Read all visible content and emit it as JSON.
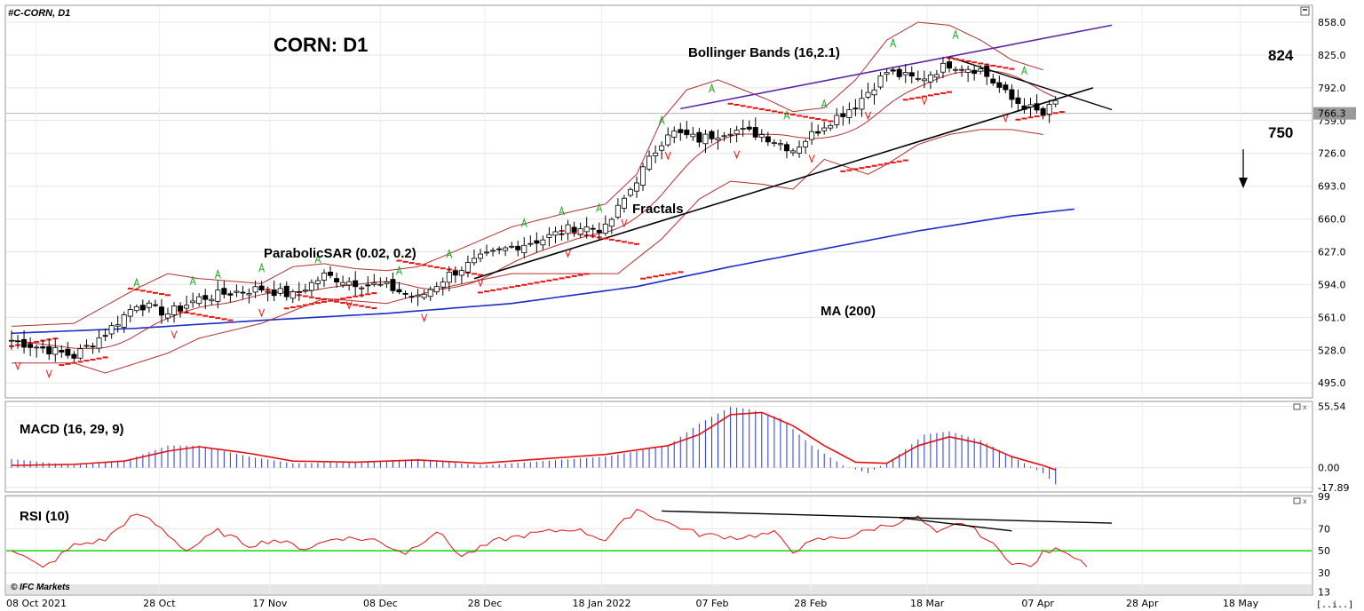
{
  "header": {
    "symbol_label": "#C-CORN, D1"
  },
  "watermark": "© IFC Markets",
  "corner_button": "[..i..]",
  "chart_data": [
    {
      "type": "candlestick",
      "panel": "price",
      "title": "CORN: D1",
      "ylim": [
        480,
        875
      ],
      "y_ticks": [
        858.0,
        825.0,
        792.0,
        759.0,
        726.0,
        693.0,
        660.0,
        627.0,
        594.0,
        561.0,
        528.0,
        495.0
      ],
      "last_price": "766.3",
      "x_ticks": [
        "08 Oct 2021",
        "28 Oct",
        "17 Nov",
        "08 Dec",
        "28 Dec",
        "18 Jan 2022",
        "07 Feb",
        "28 Feb",
        "18 Mar",
        "07 Apr",
        "28 Apr",
        "18 May"
      ],
      "annotations": {
        "bollinger": "Bollinger Bands (16,2.1)",
        "fractals": "Fractals",
        "parabolic": "ParabolicSAR (0.02, 0.2)",
        "ma": "MA (200)",
        "level_high": "824",
        "level_low": "750"
      },
      "close_anchors": [
        [
          0,
          538
        ],
        [
          5,
          530
        ],
        [
          10,
          522
        ],
        [
          15,
          545
        ],
        [
          20,
          575
        ],
        [
          25,
          565
        ],
        [
          30,
          580
        ],
        [
          35,
          586
        ],
        [
          40,
          590
        ],
        [
          45,
          583
        ],
        [
          50,
          603
        ],
        [
          55,
          596
        ],
        [
          60,
          592
        ],
        [
          65,
          580
        ],
        [
          70,
          604
        ],
        [
          75,
          620
        ],
        [
          80,
          632
        ],
        [
          85,
          640
        ],
        [
          90,
          652
        ],
        [
          95,
          650
        ],
        [
          100,
          700
        ],
        [
          105,
          748
        ],
        [
          110,
          740
        ],
        [
          115,
          750
        ],
        [
          120,
          745
        ],
        [
          125,
          730
        ],
        [
          130,
          755
        ],
        [
          135,
          775
        ],
        [
          140,
          808
        ],
        [
          145,
          800
        ],
        [
          150,
          816
        ],
        [
          155,
          810
        ],
        [
          160,
          780
        ],
        [
          165,
          765
        ],
        [
          170,
          796
        ],
        [
          172,
          775
        ],
        [
          174,
          768
        ]
      ],
      "bollinger_upper": [
        [
          0,
          552
        ],
        [
          10,
          555
        ],
        [
          20,
          590
        ],
        [
          25,
          605
        ],
        [
          30,
          600
        ],
        [
          40,
          595
        ],
        [
          45,
          612
        ],
        [
          50,
          615
        ],
        [
          55,
          610
        ],
        [
          60,
          608
        ],
        [
          65,
          612
        ],
        [
          70,
          625
        ],
        [
          80,
          652
        ],
        [
          90,
          668
        ],
        [
          95,
          675
        ],
        [
          100,
          705
        ],
        [
          104,
          760
        ],
        [
          108,
          790
        ],
        [
          113,
          800
        ],
        [
          117,
          790
        ],
        [
          121,
          780
        ],
        [
          125,
          768
        ],
        [
          130,
          772
        ],
        [
          135,
          800
        ],
        [
          140,
          840
        ],
        [
          145,
          858
        ],
        [
          150,
          855
        ],
        [
          155,
          840
        ],
        [
          160,
          820
        ],
        [
          165,
          810
        ]
      ],
      "bollinger_lower": [
        [
          0,
          515
        ],
        [
          10,
          515
        ],
        [
          15,
          505
        ],
        [
          20,
          515
        ],
        [
          25,
          525
        ],
        [
          30,
          540
        ],
        [
          40,
          555
        ],
        [
          50,
          580
        ],
        [
          60,
          575
        ],
        [
          70,
          592
        ],
        [
          80,
          605
        ],
        [
          90,
          605
        ],
        [
          97,
          605
        ],
        [
          104,
          640
        ],
        [
          110,
          680
        ],
        [
          115,
          698
        ],
        [
          120,
          695
        ],
        [
          125,
          690
        ],
        [
          130,
          720
        ],
        [
          137,
          705
        ],
        [
          140,
          715
        ],
        [
          145,
          735
        ],
        [
          150,
          745
        ],
        [
          155,
          750
        ],
        [
          160,
          750
        ],
        [
          165,
          745
        ]
      ],
      "ma200": [
        [
          0,
          545
        ],
        [
          20,
          550
        ],
        [
          40,
          558
        ],
        [
          60,
          565
        ],
        [
          80,
          575
        ],
        [
          100,
          592
        ],
        [
          115,
          612
        ],
        [
          130,
          630
        ],
        [
          145,
          648
        ],
        [
          160,
          663
        ],
        [
          170,
          670
        ]
      ],
      "support_line": [
        [
          74,
          600
        ],
        [
          173,
          792
        ]
      ],
      "channel_top": [
        [
          107,
          771
        ],
        [
          176,
          855
        ]
      ],
      "resist_line": [
        [
          150,
          823
        ],
        [
          176,
          770
        ]
      ],
      "sar_segments": [
        [
          0,
          7,
          532
        ],
        [
          8,
          15,
          513
        ],
        [
          19,
          25,
          590
        ],
        [
          26,
          35,
          568
        ],
        [
          40,
          58,
          590
        ],
        [
          44,
          58,
          570
        ],
        [
          62,
          75,
          618
        ],
        [
          75,
          92,
          586
        ],
        [
          88,
          100,
          648
        ],
        [
          101,
          107,
          600
        ],
        [
          115,
          132,
          776
        ],
        [
          133,
          143,
          708
        ],
        [
          143,
          150,
          780
        ],
        [
          150,
          160,
          822
        ],
        [
          161,
          168,
          760
        ]
      ],
      "fractal_up": [
        20,
        29,
        33,
        40,
        49,
        62,
        70,
        82,
        88,
        94,
        104,
        112,
        124,
        130,
        141,
        151,
        162
      ],
      "fractal_down": [
        1,
        6,
        26,
        40,
        54,
        66,
        75,
        89,
        98,
        105,
        116,
        128,
        137,
        146,
        159
      ]
    },
    {
      "type": "histogram+line",
      "panel": "macd",
      "title": "MACD (16, 29, 9)",
      "ylim": [
        -22,
        60
      ],
      "y_ticks": [
        55.54,
        0.0,
        -17.89
      ],
      "hist_anchors": [
        [
          0,
          8
        ],
        [
          10,
          2
        ],
        [
          18,
          6
        ],
        [
          25,
          20
        ],
        [
          30,
          20
        ],
        [
          38,
          10
        ],
        [
          45,
          4
        ],
        [
          55,
          5
        ],
        [
          65,
          8
        ],
        [
          75,
          2
        ],
        [
          85,
          6
        ],
        [
          95,
          10
        ],
        [
          105,
          20
        ],
        [
          110,
          40
        ],
        [
          115,
          55
        ],
        [
          118,
          53
        ],
        [
          123,
          45
        ],
        [
          128,
          20
        ],
        [
          133,
          2
        ],
        [
          137,
          -5
        ],
        [
          141,
          8
        ],
        [
          146,
          30
        ],
        [
          150,
          33
        ],
        [
          155,
          25
        ],
        [
          160,
          10
        ],
        [
          165,
          -5
        ],
        [
          167,
          -15
        ]
      ],
      "signal_anchors": [
        [
          0,
          2
        ],
        [
          10,
          3
        ],
        [
          18,
          6
        ],
        [
          25,
          15
        ],
        [
          30,
          19
        ],
        [
          38,
          13
        ],
        [
          45,
          6
        ],
        [
          55,
          5
        ],
        [
          65,
          7
        ],
        [
          75,
          4
        ],
        [
          85,
          8
        ],
        [
          95,
          12
        ],
        [
          105,
          20
        ],
        [
          110,
          30
        ],
        [
          115,
          48
        ],
        [
          120,
          50
        ],
        [
          125,
          38
        ],
        [
          130,
          20
        ],
        [
          135,
          5
        ],
        [
          140,
          4
        ],
        [
          145,
          20
        ],
        [
          150,
          28
        ],
        [
          155,
          22
        ],
        [
          160,
          10
        ],
        [
          165,
          2
        ],
        [
          167,
          -2
        ]
      ]
    },
    {
      "type": "line",
      "panel": "rsi",
      "title": "RSI (10)",
      "ylim": [
        10,
        100
      ],
      "y_ticks": [
        99,
        70,
        50,
        30,
        13
      ],
      "level": 50,
      "rsi_anchors": [
        [
          0,
          52
        ],
        [
          5,
          34
        ],
        [
          10,
          55
        ],
        [
          15,
          60
        ],
        [
          19,
          80
        ],
        [
          21,
          82
        ],
        [
          24,
          70
        ],
        [
          28,
          50
        ],
        [
          33,
          68
        ],
        [
          38,
          55
        ],
        [
          42,
          60
        ],
        [
          47,
          52
        ],
        [
          52,
          62
        ],
        [
          58,
          60
        ],
        [
          63,
          48
        ],
        [
          68,
          68
        ],
        [
          72,
          45
        ],
        [
          78,
          60
        ],
        [
          84,
          66
        ],
        [
          90,
          70
        ],
        [
          95,
          60
        ],
        [
          100,
          88
        ],
        [
          105,
          75
        ],
        [
          110,
          65
        ],
        [
          116,
          62
        ],
        [
          122,
          66
        ],
        [
          125,
          50
        ],
        [
          129,
          60
        ],
        [
          134,
          63
        ],
        [
          139,
          72
        ],
        [
          145,
          80
        ],
        [
          148,
          65
        ],
        [
          152,
          76
        ],
        [
          155,
          65
        ],
        [
          160,
          40
        ],
        [
          163,
          35
        ],
        [
          165,
          48
        ],
        [
          168,
          52
        ],
        [
          172,
          38
        ]
      ],
      "trend1": [
        [
          104,
          86
        ],
        [
          176,
          75
        ]
      ],
      "trend2": [
        [
          142,
          80
        ],
        [
          160,
          68
        ]
      ]
    }
  ]
}
